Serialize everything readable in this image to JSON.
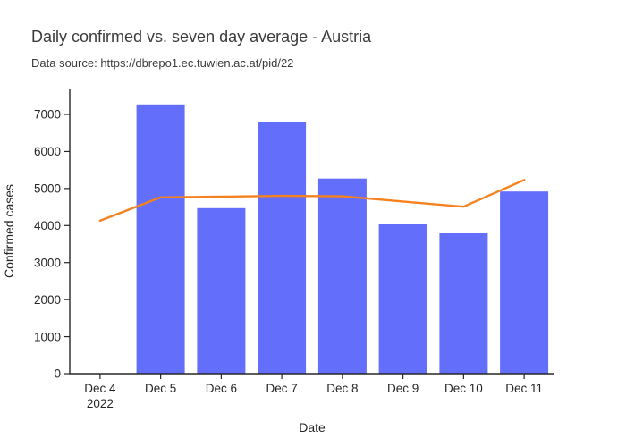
{
  "chart_data": {
    "type": "bar",
    "title": "Daily confirmed vs. seven day average - Austria",
    "subtitle": "Data source: https://dbrepo1.ec.tuwien.ac.at/pid/22",
    "xlabel": "Date",
    "ylabel": "Confirmed cases",
    "categories": [
      "Dec 4",
      "Dec 5",
      "Dec 6",
      "Dec 7",
      "Dec 8",
      "Dec 9",
      "Dec 10",
      "Dec 11"
    ],
    "x_first_tick_sublabel": "2022",
    "series": [
      {
        "name": "Daily confirmed",
        "type": "bar",
        "color": "#636EFA",
        "values": [
          null,
          7270,
          4470,
          6800,
          5270,
          4030,
          3790,
          4920
        ]
      },
      {
        "name": "Seven day average",
        "type": "line",
        "color": "#F5821F",
        "values": [
          4130,
          4760,
          4780,
          4800,
          4790,
          4650,
          4510,
          5230
        ]
      }
    ],
    "y_axis": {
      "min": 0,
      "max": 7700,
      "ticks": [
        0,
        1000,
        2000,
        3000,
        4000,
        5000,
        6000,
        7000
      ]
    },
    "grid": false,
    "legend": "none",
    "axis_color": "#262626",
    "tick_label_color": "#262626",
    "title_color": "#3b3b3b",
    "background_color": "#ffffff"
  }
}
